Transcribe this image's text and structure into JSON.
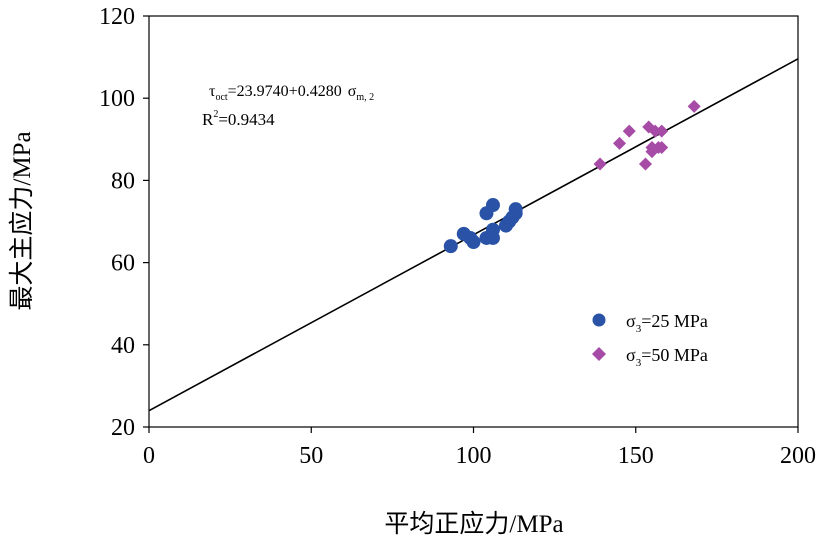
{
  "chart_data": {
    "type": "scatter",
    "title": "",
    "xlabel": "平均正应力/MPa",
    "ylabel": "最大主应力/MPa",
    "xlim": [
      0,
      200
    ],
    "ylim": [
      20,
      120
    ],
    "xticks": [
      "0",
      "50",
      "100",
      "150",
      "200"
    ],
    "yticks": [
      "20",
      "40",
      "60",
      "80",
      "100",
      "120"
    ],
    "grid": false,
    "legend_position": "bottom-right",
    "series": [
      {
        "name": "σ3=25 MPa",
        "legend_sym": "σ",
        "legend_sub": "3",
        "legend_tail": "=25 MPa",
        "marker": "circle",
        "color": "#2a52a6",
        "points": [
          [
            93,
            64
          ],
          [
            97,
            67
          ],
          [
            99,
            66
          ],
          [
            100,
            65
          ],
          [
            104,
            66
          ],
          [
            104,
            72
          ],
          [
            106,
            74
          ],
          [
            106,
            68
          ],
          [
            106,
            66
          ],
          [
            110,
            69
          ],
          [
            111,
            70
          ],
          [
            112,
            71
          ],
          [
            113,
            72
          ],
          [
            113,
            73
          ]
        ]
      },
      {
        "name": "σ3=50 MPa",
        "legend_sym": "σ",
        "legend_sub": "3",
        "legend_tail": "=50 MPa",
        "marker": "diamond",
        "color": "#a64ca6",
        "points": [
          [
            139,
            84
          ],
          [
            145,
            89
          ],
          [
            148,
            92
          ],
          [
            153,
            84
          ],
          [
            154,
            93
          ],
          [
            155,
            88
          ],
          [
            155,
            87
          ],
          [
            156,
            92
          ],
          [
            157,
            88
          ],
          [
            158,
            92
          ],
          [
            158,
            88
          ],
          [
            168,
            98
          ]
        ]
      }
    ],
    "fit_line": {
      "intercept": 23.974,
      "slope": 0.428,
      "x_range": [
        0,
        200
      ]
    },
    "annotation": {
      "tau": "τ",
      "tau_sub": "oct",
      "equation": "=23.9740+0.4280",
      "sigma": "σ",
      "sigma_sub": "m, 2",
      "r_label": "R",
      "r_sup": "2",
      "r_value": "=0.9434"
    }
  }
}
